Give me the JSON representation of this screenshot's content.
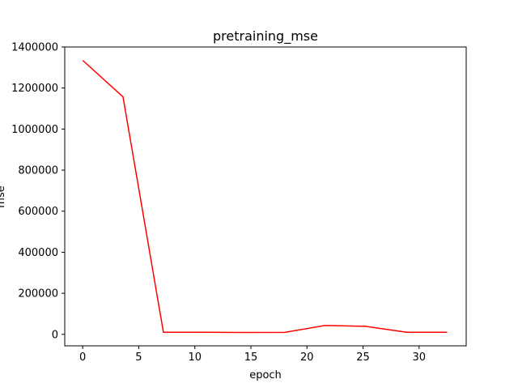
{
  "chart_data": {
    "type": "line",
    "title": "pretraining_mse",
    "xlabel": "epoch",
    "ylabel": "mse",
    "xlim": [
      -1.6,
      34.2
    ],
    "ylim": [
      -56000,
      1400000
    ],
    "x_ticks": [
      0,
      5,
      10,
      15,
      20,
      25,
      30
    ],
    "y_ticks": [
      0,
      200000,
      400000,
      600000,
      800000,
      1000000,
      1200000,
      1400000
    ],
    "grid": false,
    "series": [
      {
        "color": "#ff0000",
        "x": [
          0,
          3.6,
          7.2,
          10.8,
          14.4,
          18.0,
          21.6,
          25.2,
          28.9,
          32.5
        ],
        "y": [
          1335000,
          1157000,
          10000,
          10000,
          9000,
          9500,
          43000,
          39000,
          10000,
          10000
        ]
      }
    ]
  }
}
